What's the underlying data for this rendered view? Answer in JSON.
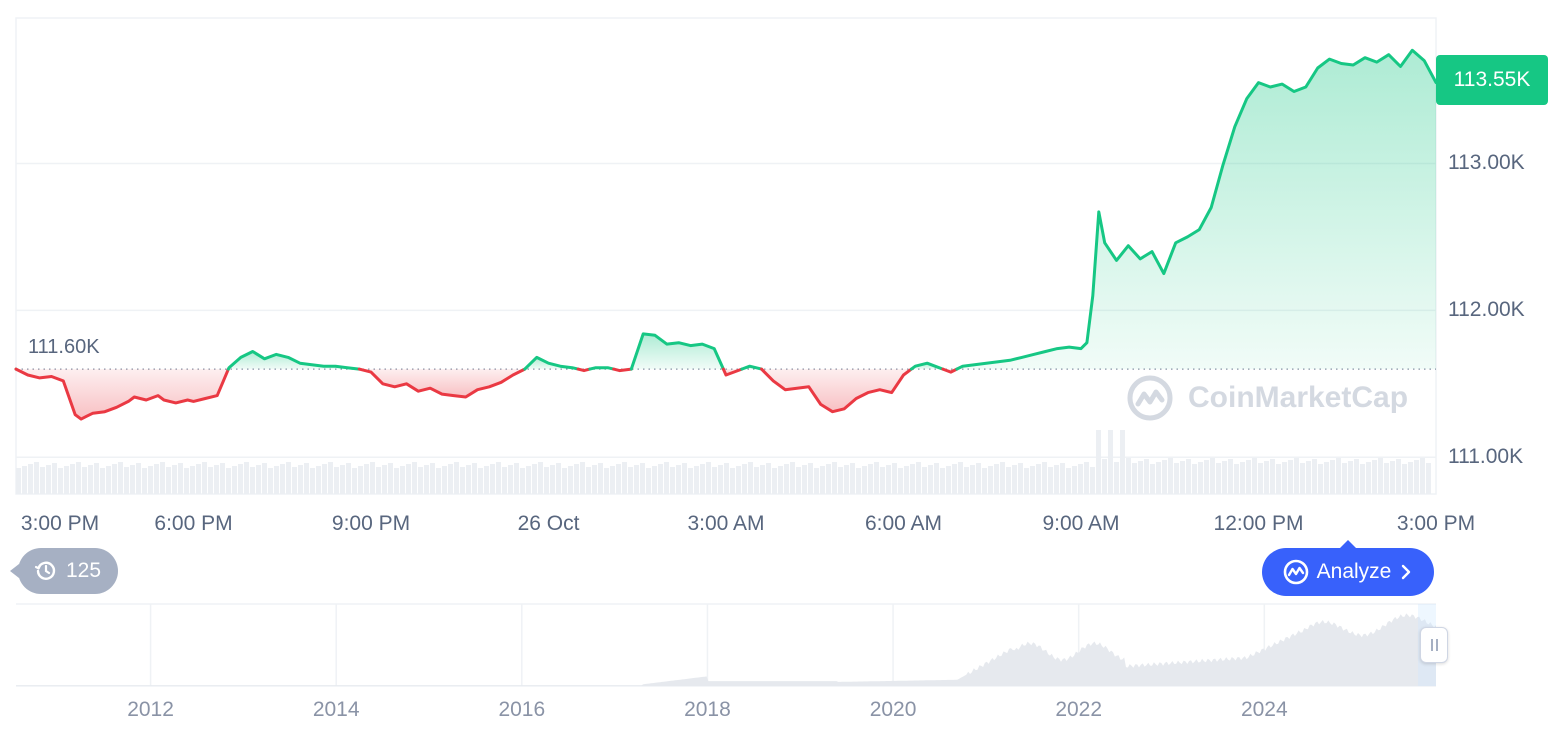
{
  "chart_data": {
    "type": "area",
    "ticker_price_label": "113.55K",
    "reference_label": "111.60K",
    "reference_value": 111600,
    "y_ticks": [
      "113.00K",
      "112.00K",
      "111.00K"
    ],
    "y_tick_values": [
      113000,
      112000,
      111000
    ],
    "ylim": [
      110750,
      113990
    ],
    "x_ticks": [
      "3:00 PM",
      "6:00 PM",
      "9:00 PM",
      "26 Oct",
      "3:00 AM",
      "6:00 AM",
      "9:00 AM",
      "12:00 PM",
      "3:00 PM"
    ],
    "x_tick_values": [
      0,
      3,
      6,
      9,
      12,
      15,
      18,
      21,
      24
    ],
    "xlim": [
      0,
      24
    ],
    "grid": true,
    "colors": {
      "up": "#16c784",
      "down": "#ea3943",
      "up_fill": "#16c784",
      "down_fill": "#ea3943"
    },
    "series": [
      {
        "x": [
          0.0,
          0.2,
          0.4,
          0.6,
          0.8,
          1.0,
          1.1,
          1.2,
          1.3,
          1.5,
          1.7,
          1.9,
          2.0,
          2.2,
          2.4,
          2.5,
          2.7,
          2.9,
          3.0,
          3.2,
          3.4,
          3.6,
          3.8,
          4.0,
          4.2,
          4.4,
          4.6,
          4.8,
          5.0,
          5.2,
          5.4,
          5.6,
          5.8,
          6.0,
          6.2,
          6.4,
          6.6,
          6.8,
          7.0,
          7.2,
          7.4,
          7.6,
          7.8,
          8.0,
          8.2,
          8.4,
          8.6,
          8.8,
          9.0,
          9.2,
          9.4,
          9.6,
          9.8,
          10.0,
          10.2,
          10.4,
          10.6,
          10.8,
          11.0,
          11.2,
          11.4,
          11.6,
          11.8,
          12.0,
          12.2,
          12.4,
          12.6,
          12.8,
          13.0,
          13.2,
          13.4,
          13.6,
          13.8,
          14.0,
          14.2,
          14.4,
          14.6,
          14.8,
          15.0,
          15.2,
          15.4,
          15.6,
          15.8,
          16.0,
          16.2,
          16.4,
          16.6,
          16.8,
          17.0,
          17.2,
          17.4,
          17.6,
          17.8,
          18.0,
          18.1,
          18.2,
          18.3,
          18.4,
          18.6,
          18.8,
          19.0,
          19.2,
          19.4,
          19.6,
          19.8,
          20.0,
          20.2,
          20.4,
          20.6,
          20.8,
          21.0,
          21.2,
          21.4,
          21.6,
          21.8,
          22.0,
          22.2,
          22.4,
          22.6,
          22.8,
          23.0,
          23.2,
          23.4,
          23.6,
          23.8,
          24.0
        ],
        "y": [
          111600,
          111560,
          111540,
          111550,
          111520,
          111290,
          111260,
          111280,
          111300,
          111310,
          111340,
          111380,
          111410,
          111390,
          111420,
          111390,
          111370,
          111390,
          111380,
          111400,
          111420,
          111610,
          111680,
          111720,
          111670,
          111700,
          111680,
          111640,
          111630,
          111620,
          111620,
          111610,
          111600,
          111580,
          111500,
          111480,
          111500,
          111450,
          111470,
          111430,
          111420,
          111410,
          111460,
          111480,
          111510,
          111560,
          111600,
          111680,
          111640,
          111620,
          111610,
          111590,
          111610,
          111610,
          111590,
          111600,
          111840,
          111830,
          111770,
          111780,
          111760,
          111770,
          111740,
          111560,
          111590,
          111620,
          111600,
          111520,
          111460,
          111470,
          111480,
          111360,
          111310,
          111330,
          111400,
          111440,
          111460,
          111440,
          111560,
          111620,
          111640,
          111610,
          111580,
          111620,
          111630,
          111640,
          111650,
          111660,
          111680,
          111700,
          111720,
          111740,
          111750,
          111740,
          111780,
          112100,
          112670,
          112460,
          112340,
          112440,
          112350,
          112400,
          112250,
          112460,
          112500,
          112550,
          112700,
          112990,
          113250,
          113440,
          113550,
          113520,
          113540,
          113490,
          113520,
          113650,
          113710,
          113680,
          113670,
          113720,
          113690,
          113740,
          113660,
          113770,
          113700,
          113550
        ]
      }
    ]
  },
  "navigator": {
    "year_labels": [
      "2012",
      "2014",
      "2016",
      "2018",
      "2020",
      "2022",
      "2024"
    ],
    "year_values": [
      2012,
      2014,
      2016,
      2018,
      2020,
      2022,
      2024
    ],
    "xlim": [
      2010.55,
      2025.85
    ]
  },
  "ui": {
    "history_count": "125",
    "analyze_label": "Analyze",
    "watermark_text": "CoinMarketCap",
    "icons": {
      "history": "history-clock-icon",
      "analyze": "coinmarketcap-logo-icon",
      "chevron": "chevron-right-icon",
      "watermark": "coinmarketcap-logo-icon"
    }
  }
}
